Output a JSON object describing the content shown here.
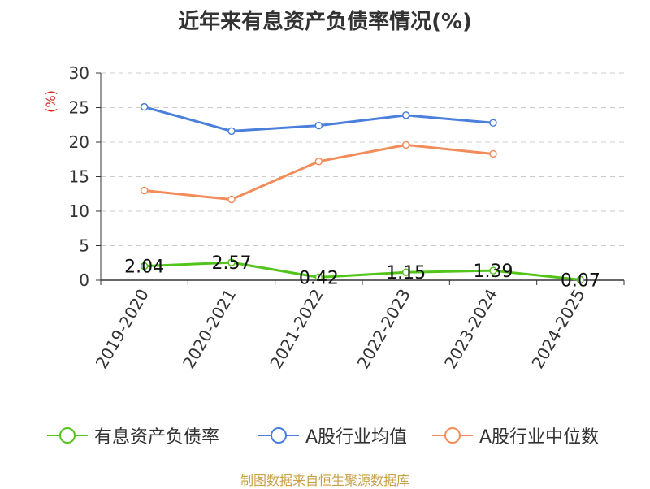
{
  "title": "近年来有息资产负债率情况(%)",
  "source": "制图数据来自恒生聚源数据库",
  "chart_data": {
    "type": "line",
    "ylabel": "(%)",
    "xlabel": "",
    "ylim": [
      0,
      30
    ],
    "yticks": [
      0,
      5,
      10,
      15,
      20,
      25,
      30
    ],
    "grid": true,
    "legend_position": "bottom",
    "categories": [
      "2019-2020",
      "2020-2021",
      "2021-2022",
      "2022-2023",
      "2023-2024",
      "2024-2025"
    ],
    "series": [
      {
        "name": "有息资产负债率",
        "color": "#52c41a",
        "values": [
          2.04,
          2.57,
          0.42,
          1.15,
          1.39,
          0.07
        ],
        "data_labels": [
          "2.04",
          "2.57",
          "0.42",
          "1.15",
          "1.39",
          "0.07"
        ]
      },
      {
        "name": "A股行业均值",
        "color": "#4a7fdc",
        "values": [
          25.1,
          21.6,
          22.4,
          23.9,
          22.8,
          null
        ]
      },
      {
        "name": "A股行业中位数",
        "color": "#f28c5a",
        "values": [
          13.0,
          11.7,
          17.2,
          19.6,
          18.3,
          null
        ]
      }
    ]
  }
}
